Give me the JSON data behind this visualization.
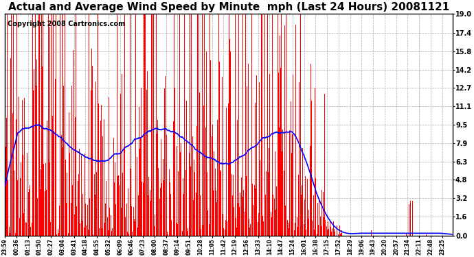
{
  "title": "Actual and Average Wind Speed by Minute  mph (Last 24 Hours) 20081121",
  "copyright": "Copyright 2008 Cartronics.com",
  "y_ticks": [
    0.0,
    1.6,
    3.2,
    4.8,
    6.3,
    7.9,
    9.5,
    11.1,
    12.7,
    14.2,
    15.8,
    17.4,
    19.0
  ],
  "ylim": [
    0.0,
    19.0
  ],
  "bar_color": "#FF0000",
  "line_color": "#0000FF",
  "background_color": "#FFFFFF",
  "grid_color": "#AAAAAA",
  "title_fontsize": 11,
  "copyright_fontsize": 7,
  "tick_interval": 37
}
